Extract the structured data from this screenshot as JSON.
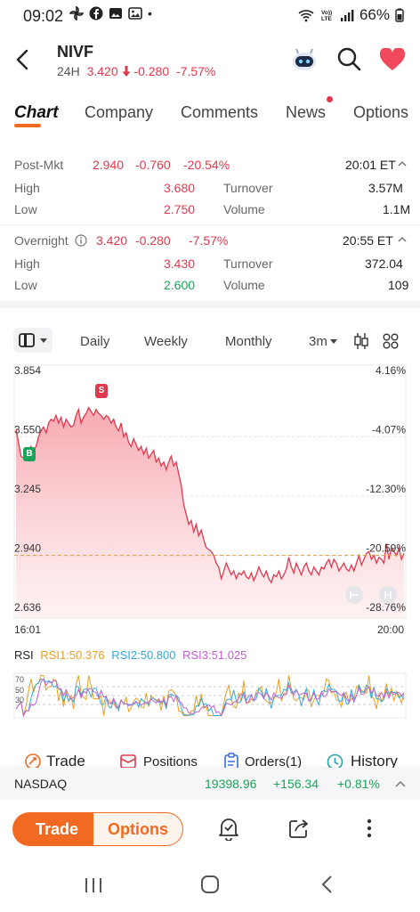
{
  "status_bar": {
    "time": "09:02",
    "dot": "•",
    "battery": "66%",
    "icons_left": [
      "pinwheel-icon",
      "facebook-icon",
      "image-icon",
      "gallery-icon"
    ],
    "icons_right": [
      "wifi-icon",
      "volte-icon",
      "signal-icon",
      "battery-icon"
    ]
  },
  "header": {
    "ticker": "NIVF",
    "session_label": "24H",
    "price": "3.420",
    "change": "-0.280",
    "change_pct": "-7.57%"
  },
  "tabs": [
    {
      "label": "Chart",
      "active": true
    },
    {
      "label": "Company"
    },
    {
      "label": "Comments"
    },
    {
      "label": "News",
      "badge": true
    },
    {
      "label": "Options"
    }
  ],
  "post_market": {
    "label": "Post-Mkt",
    "price": "2.940",
    "change": "-0.760",
    "change_pct": "-20.54%",
    "time": "20:01 ET",
    "high_label": "High",
    "high": "3.680",
    "turnover_label": "Turnover",
    "turnover": "3.57M",
    "low_label": "Low",
    "low": "2.750",
    "volume_label": "Volume",
    "volume": "1.1M"
  },
  "overnight": {
    "label": "Overnight",
    "price": "3.420",
    "change": "-0.280",
    "change_pct": "-7.57%",
    "time": "20:55 ET",
    "high_label": "High",
    "high": "3.430",
    "turnover_label": "Turnover",
    "turnover": "372.04",
    "low_label": "Low",
    "low": "2.600",
    "volume_label": "Volume",
    "volume": "109"
  },
  "chart_toolbar": {
    "daily": "Daily",
    "weekly": "Weekly",
    "monthly": "Monthly",
    "period": "3m"
  },
  "chart_data": {
    "type": "area",
    "y_left_ticks": [
      "3.854",
      "3.550",
      "3.245",
      "2.940",
      "2.636"
    ],
    "y_right_ticks": [
      "4.16%",
      "-4.07%",
      "-12.30%",
      "-20.59%",
      "-28.76%"
    ],
    "x_ticks": [
      "16:01",
      "20:00"
    ],
    "ylim": [
      2.636,
      3.854
    ],
    "reference_price": 2.94,
    "buy_marker": "B",
    "sell_marker": "S",
    "colors": {
      "line": "#e0394d",
      "fill": "#f7a4ac",
      "ref": "#e0a040"
    },
    "values": [
      3.59,
      3.52,
      3.45,
      3.44,
      3.47,
      3.46,
      3.5,
      3.48,
      3.5,
      3.55,
      3.58,
      3.6,
      3.57,
      3.62,
      3.64,
      3.63,
      3.66,
      3.62,
      3.65,
      3.6,
      3.64,
      3.62,
      3.6,
      3.61,
      3.66,
      3.69,
      3.62,
      3.65,
      3.67,
      3.7,
      3.68,
      3.66,
      3.69,
      3.67,
      3.66,
      3.64,
      3.66,
      3.65,
      3.62,
      3.64,
      3.6,
      3.58,
      3.62,
      3.55,
      3.57,
      3.52,
      3.5,
      3.54,
      3.51,
      3.48,
      3.5,
      3.46,
      3.49,
      3.44,
      3.46,
      3.48,
      3.42,
      3.44,
      3.4,
      3.42,
      3.38,
      3.42,
      3.45,
      3.4,
      3.42,
      3.36,
      3.3,
      3.2,
      3.15,
      3.1,
      3.12,
      3.06,
      3.1,
      3.04,
      3.07,
      3.02,
      2.98,
      2.97,
      2.96,
      2.94,
      2.9,
      2.88,
      2.82,
      2.86,
      2.9,
      2.87,
      2.84,
      2.86,
      2.82,
      2.85,
      2.84,
      2.86,
      2.83,
      2.82,
      2.85,
      2.81,
      2.84,
      2.88,
      2.85,
      2.83,
      2.86,
      2.82,
      2.8,
      2.84,
      2.83,
      2.86,
      2.82,
      2.84,
      2.87,
      2.93,
      2.88,
      2.85,
      2.9,
      2.87,
      2.84,
      2.88,
      2.9,
      2.86,
      2.84,
      2.88,
      2.86,
      2.84,
      2.88,
      2.87,
      2.9,
      2.92,
      2.88,
      2.92,
      2.9,
      2.86,
      2.88,
      2.9,
      2.87,
      2.86,
      2.89,
      2.86,
      2.9,
      2.94,
      2.89,
      2.92,
      2.95,
      2.96,
      2.92,
      2.94,
      2.9,
      2.93,
      2.92,
      2.9,
      3.0,
      2.92,
      2.98,
      2.96,
      2.94,
      2.98,
      2.92,
      2.95
    ]
  },
  "rsi": {
    "label": "RSI",
    "rsi1": "RSI1:50.376",
    "rsi2": "RSI2:50.800",
    "rsi3": "RSI3:51.025",
    "ticks": [
      "70",
      "50",
      "30"
    ],
    "colors": {
      "rsi1": "#e8a020",
      "rsi2": "#35a8d8",
      "rsi3": "#c060d0"
    }
  },
  "actions": {
    "trade": "Trade",
    "positions": "Positions",
    "orders": "Orders(1)",
    "history": "History"
  },
  "index_ticker": {
    "name": "NASDAQ",
    "value": "19398.96",
    "change": "+156.34",
    "change_pct": "+0.81%"
  },
  "bottom_bar": {
    "trade": "Trade",
    "options": "Options"
  },
  "colors": {
    "accent": "#f26a21",
    "down": "#e0394d",
    "up": "#1aa35a"
  }
}
